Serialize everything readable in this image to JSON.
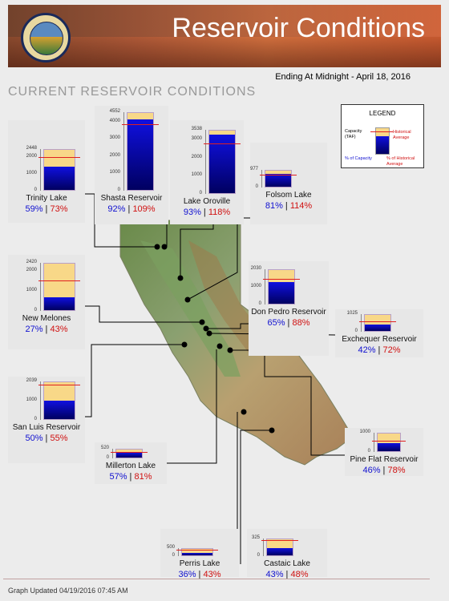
{
  "header": {
    "title": "Reservoir Conditions",
    "seal_text": "DEPARTMENT OF WATER RESOURCES · STATE OF CALIFORNIA"
  },
  "ending_text": "Ending At Midnight - April 18, 2016",
  "subtitle": "CURRENT RESERVOIR CONDITIONS",
  "legend": {
    "title": "LEGEND",
    "capacity_label": "Capacity (TAF)",
    "historical_label": "Historical Average",
    "pct_capacity_label": "% of Capacity",
    "pct_hist_label": "% of Historical Average"
  },
  "footer": "Graph Updated 04/19/2016 07:45 AM",
  "colors": {
    "capacity_fill": "#f8d888",
    "storage_fill": "#1010e0",
    "historical_line": "#e02020",
    "pct_capacity": "#1010d0",
    "pct_average": "#d01010"
  },
  "chart_data": {
    "type": "bar",
    "units": "TAF",
    "reservoirs": [
      {
        "name": "Trinity Lake",
        "capacity": 2448,
        "pct_capacity": "59%",
        "pct_average": "73%",
        "ticks": [
          "2448",
          "2000",
          "1000",
          "0"
        ],
        "tick_values": [
          2448,
          2000,
          1000,
          0
        ]
      },
      {
        "name": "Shasta Reservoir",
        "capacity": 4552,
        "pct_capacity": "92%",
        "pct_average": "109%",
        "ticks": [
          "4552",
          "4000",
          "3000",
          "2000",
          "1000",
          "0"
        ],
        "tick_values": [
          4552,
          4000,
          3000,
          2000,
          1000,
          0
        ]
      },
      {
        "name": "Lake Oroville",
        "capacity": 3538,
        "pct_capacity": "93%",
        "pct_average": "118%",
        "ticks": [
          "3538",
          "3000",
          "2000",
          "1000",
          "0"
        ],
        "tick_values": [
          3538,
          3000,
          2000,
          1000,
          0
        ]
      },
      {
        "name": "Folsom Lake",
        "capacity": 977,
        "pct_capacity": "81%",
        "pct_average": "114%",
        "ticks": [
          "977",
          "0"
        ],
        "tick_values": [
          977,
          0
        ]
      },
      {
        "name": "New Melones",
        "capacity": 2420,
        "pct_capacity": "27%",
        "pct_average": "43%",
        "ticks": [
          "2420",
          "2000",
          "1000",
          "0"
        ],
        "tick_values": [
          2420,
          2000,
          1000,
          0
        ]
      },
      {
        "name": "Don Pedro Reservoir",
        "capacity": 2030,
        "pct_capacity": "65%",
        "pct_average": "88%",
        "ticks": [
          "2030",
          "1000",
          "0"
        ],
        "tick_values": [
          2030,
          1000,
          0
        ]
      },
      {
        "name": "Exchequer Reservoir",
        "capacity": 1025,
        "pct_capacity": "42%",
        "pct_average": "72%",
        "ticks": [
          "1025",
          "0"
        ],
        "tick_values": [
          1025,
          0
        ]
      },
      {
        "name": "San Luis Reservoir",
        "capacity": 2039,
        "pct_capacity": "50%",
        "pct_average": "55%",
        "ticks": [
          "2039",
          "1000",
          "0"
        ],
        "tick_values": [
          2039,
          1000,
          0
        ]
      },
      {
        "name": "Millerton Lake",
        "capacity": 520,
        "pct_capacity": "57%",
        "pct_average": "81%",
        "ticks": [
          "520",
          "0"
        ],
        "tick_values": [
          520,
          0
        ]
      },
      {
        "name": "Pine Flat Reservoir",
        "capacity": 1000,
        "pct_capacity": "46%",
        "pct_average": "78%",
        "ticks": [
          "1000",
          "0"
        ],
        "tick_values": [
          1000,
          0
        ]
      },
      {
        "name": "Perris Lake",
        "capacity": 500,
        "pct_capacity": "36%",
        "pct_average": "43%",
        "ticks": [
          "500",
          "0"
        ],
        "tick_values": [
          500,
          0
        ]
      },
      {
        "name": "Castaic Lake",
        "capacity": 325,
        "pct_capacity": "43%",
        "pct_average": "48%",
        "ticks": [
          "325",
          "0"
        ],
        "tick_values": [
          325,
          0
        ]
      }
    ]
  }
}
